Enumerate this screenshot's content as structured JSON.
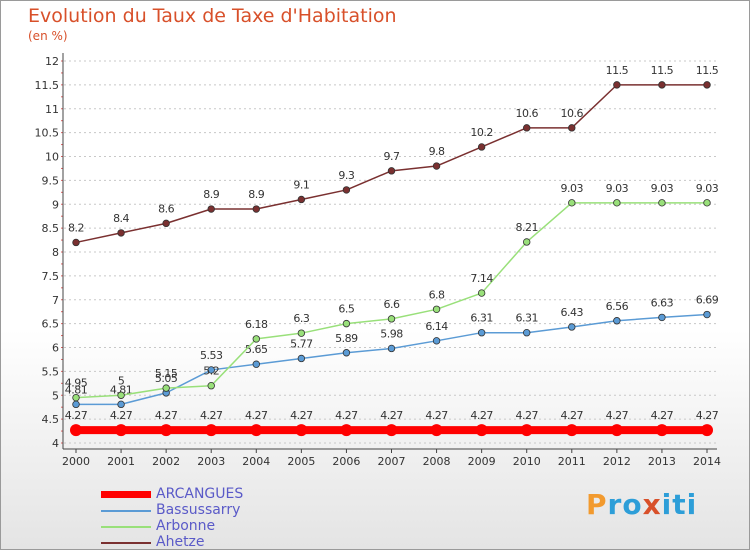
{
  "title": "Evolution du Taux de Taxe d'Habitation",
  "subtitle": "(en %)",
  "logo": {
    "text": "Proxiti",
    "letters": [
      "P",
      "r",
      "o",
      "x",
      "i",
      "t",
      "i"
    ],
    "colors": [
      "#f29a2e",
      "#2d9ed8",
      "#2d9ed8",
      "#d8502a",
      "#2d9ed8",
      "#2d9ed8",
      "#2d9ed8"
    ]
  },
  "chart_data": {
    "type": "line",
    "title": "Evolution du Taux de Taxe d'Habitation",
    "ylabel": "(en %)",
    "xlabel": "",
    "x": [
      "2000",
      "2001",
      "2002",
      "2003",
      "2004",
      "2005",
      "2006",
      "2007",
      "2008",
      "2009",
      "2010",
      "2011",
      "2012",
      "2013",
      "2014"
    ],
    "ylim": [
      4,
      12
    ],
    "yticks": [
      "4",
      "4.5",
      "5",
      "5.5",
      "6",
      "6.5",
      "7",
      "7.5",
      "8",
      "8.5",
      "9",
      "9.5",
      "10",
      "10.5",
      "11",
      "11.5",
      "12"
    ],
    "legend_position": "bottom-left",
    "series": [
      {
        "name": "ARCANGUES",
        "color": "#ff0000",
        "thick": true,
        "values": [
          4.27,
          4.27,
          4.27,
          4.27,
          4.27,
          4.27,
          4.27,
          4.27,
          4.27,
          4.27,
          4.27,
          4.27,
          4.27,
          4.27,
          4.27
        ],
        "labels": [
          "4.27",
          "4.27",
          "4.27",
          "4.27",
          "4.27",
          "4.27",
          "4.27",
          "4.27",
          "4.27",
          "4.27",
          "4.27",
          "4.27",
          "4.27",
          "4.27",
          "4.27"
        ]
      },
      {
        "name": "Bassussarry",
        "color": "#5b9bd5",
        "thick": false,
        "values": [
          4.81,
          4.81,
          5.05,
          5.53,
          5.65,
          5.77,
          5.89,
          5.98,
          6.14,
          6.31,
          6.31,
          6.43,
          6.56,
          6.63,
          6.69
        ],
        "labels": [
          "4.81",
          "4.81",
          "5.05",
          "5.53",
          "5.65",
          "5.77",
          "5.89",
          "5.98",
          "6.14",
          "6.31",
          "6.31",
          "6.43",
          "6.56",
          "6.63",
          "6.69"
        ]
      },
      {
        "name": "Arbonne",
        "color": "#99e07a",
        "thick": false,
        "values": [
          4.95,
          5,
          5.15,
          5.2,
          6.18,
          6.3,
          6.5,
          6.6,
          6.8,
          7.14,
          8.21,
          9.03,
          9.03,
          9.03,
          9.03
        ],
        "labels": [
          "4.95",
          "5",
          "5.15",
          "5.2",
          "6.18",
          "6.3",
          "6.5",
          "6.6",
          "6.8",
          "7.14",
          "8.21",
          "9.03",
          "9.03",
          "9.03",
          "9.03"
        ]
      },
      {
        "name": "Ahetze",
        "color": "#7a3030",
        "thick": false,
        "values": [
          8.2,
          8.4,
          8.6,
          8.9,
          8.9,
          9.1,
          9.3,
          9.7,
          9.8,
          10.2,
          10.6,
          10.6,
          11.5,
          11.5,
          11.5
        ],
        "labels": [
          "8.2",
          "8.4",
          "8.6",
          "8.9",
          "8.9",
          "9.1",
          "9.3",
          "9.7",
          "9.8",
          "10.2",
          "10.6",
          "10.6",
          "11.5",
          "11.5",
          "11.5"
        ]
      }
    ]
  }
}
